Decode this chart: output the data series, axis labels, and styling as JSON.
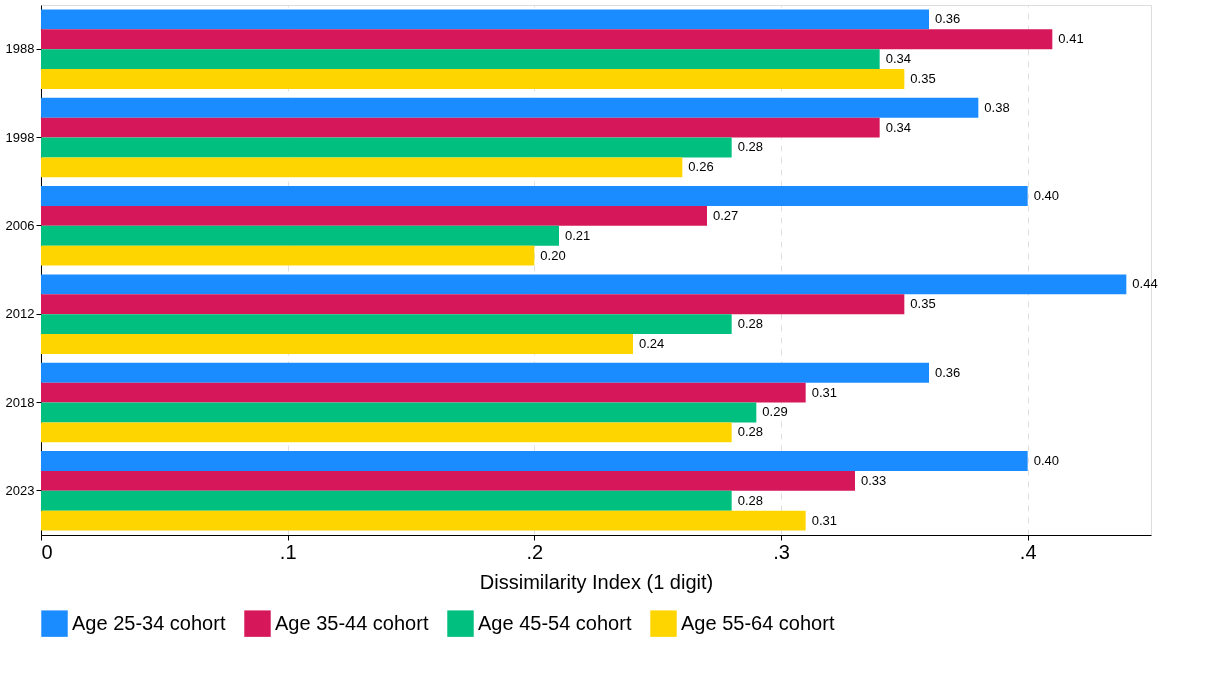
{
  "chart_data": {
    "type": "bar",
    "orientation": "horizontal",
    "xlabel": "Dissimilarity Index (1 digit)",
    "categories": [
      "1988",
      "1998",
      "2006",
      "2012",
      "2018",
      "2023"
    ],
    "series": [
      {
        "name": "Age 25-34 cohort",
        "color": "#1a8cff",
        "values": [
          0.36,
          0.38,
          0.4,
          0.44,
          0.36,
          0.4
        ],
        "value_labels": [
          "0.36",
          "0.38",
          "0.40",
          "0.44",
          "0.36",
          "0.40"
        ]
      },
      {
        "name": "Age 35-44 cohort",
        "color": "#d6185a",
        "values": [
          0.41,
          0.34,
          0.27,
          0.35,
          0.31,
          0.33
        ],
        "value_labels": [
          "0.41",
          "0.34",
          "0.27",
          "0.35",
          "0.31",
          "0.33"
        ]
      },
      {
        "name": "Age 45-54 cohort",
        "color": "#00bf7f",
        "values": [
          0.34,
          0.28,
          0.21,
          0.28,
          0.29,
          0.28
        ],
        "value_labels": [
          "0.34",
          "0.28",
          "0.21",
          "0.28",
          "0.29",
          "0.28"
        ]
      },
      {
        "name": "Age 55-64 cohort",
        "color": "#ffd500",
        "values": [
          0.35,
          0.26,
          0.2,
          0.24,
          0.28,
          0.31
        ],
        "value_labels": [
          "0.35",
          "0.26",
          "0.20",
          "0.24",
          "0.28",
          "0.31"
        ]
      }
    ],
    "xlim": [
      0,
      0.45
    ],
    "xticks": [
      0,
      {
        "value": 0.1,
        "label": ".1"
      },
      {
        "value": 0.2,
        "label": ".2"
      },
      {
        "value": 0.3,
        "label": ".3"
      },
      {
        "value": 0.4,
        "label": ".4"
      }
    ],
    "grid": "x",
    "legend": "bottom"
  }
}
